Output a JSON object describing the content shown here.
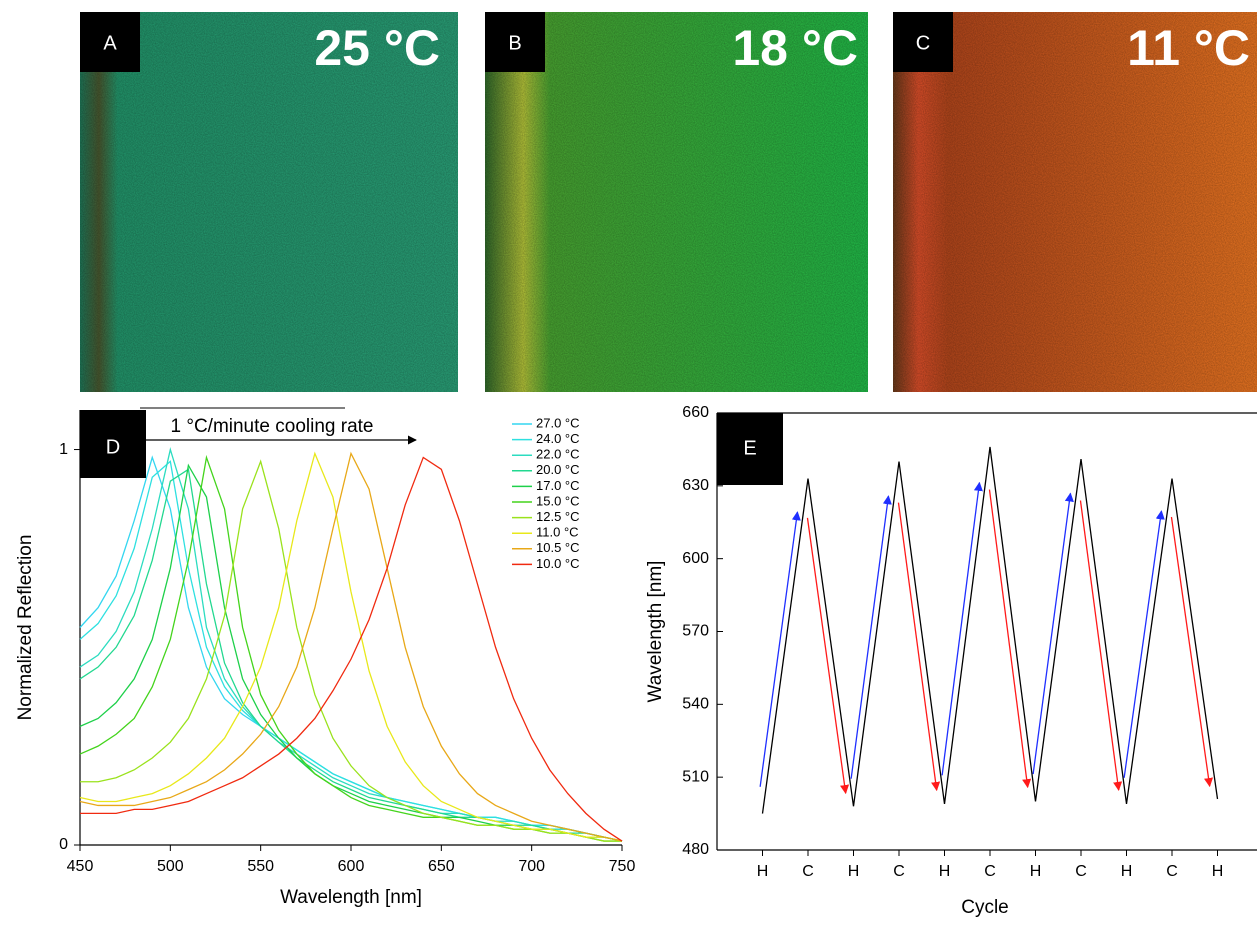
{
  "panels": [
    {
      "label": "A",
      "temperature": "25 °C"
    },
    {
      "label": "B",
      "temperature": "18 °C"
    },
    {
      "label": "C",
      "temperature": "11 °C"
    }
  ],
  "chart_data": [
    {
      "type": "line",
      "panel_label": "D",
      "xlabel": "Wavelength [nm]",
      "ylabel": "Normalized Reflection",
      "annotation": "1 °C/minute cooling rate",
      "xlim": [
        450,
        750
      ],
      "ylim": [
        0,
        1.1
      ],
      "xticks": [
        450,
        500,
        550,
        600,
        650,
        700,
        750
      ],
      "yticks": [
        0,
        1
      ],
      "legend": "upper right",
      "x": [
        450,
        460,
        470,
        480,
        490,
        500,
        510,
        520,
        530,
        540,
        550,
        560,
        570,
        580,
        590,
        600,
        610,
        620,
        630,
        640,
        650,
        660,
        670,
        680,
        690,
        700,
        710,
        720,
        730,
        740,
        750
      ],
      "series": [
        {
          "name": "27.0 °C",
          "color": "#33d6f0",
          "values": [
            0.55,
            0.6,
            0.68,
            0.82,
            0.98,
            0.85,
            0.6,
            0.45,
            0.37,
            0.33,
            0.3,
            0.27,
            0.24,
            0.21,
            0.18,
            0.16,
            0.14,
            0.12,
            0.11,
            0.1,
            0.09,
            0.08,
            0.07,
            0.07,
            0.06,
            0.05,
            0.05,
            0.04,
            0.03,
            0.02,
            0.01
          ]
        },
        {
          "name": "24.0 °C",
          "color": "#2ee0e0",
          "values": [
            0.52,
            0.56,
            0.63,
            0.75,
            0.93,
            0.97,
            0.7,
            0.5,
            0.4,
            0.34,
            0.3,
            0.27,
            0.24,
            0.21,
            0.18,
            0.16,
            0.14,
            0.12,
            0.11,
            0.1,
            0.09,
            0.08,
            0.07,
            0.07,
            0.06,
            0.05,
            0.05,
            0.04,
            0.03,
            0.02,
            0.01
          ]
        },
        {
          "name": "22.0 °C",
          "color": "#2cdcc0",
          "values": [
            0.45,
            0.48,
            0.54,
            0.64,
            0.8,
            1.0,
            0.85,
            0.55,
            0.42,
            0.35,
            0.3,
            0.26,
            0.23,
            0.2,
            0.17,
            0.15,
            0.13,
            0.12,
            0.1,
            0.09,
            0.08,
            0.08,
            0.07,
            0.06,
            0.06,
            0.05,
            0.04,
            0.04,
            0.03,
            0.02,
            0.01
          ]
        },
        {
          "name": "20.0 °C",
          "color": "#22d890",
          "values": [
            0.42,
            0.45,
            0.5,
            0.58,
            0.72,
            0.92,
            0.95,
            0.66,
            0.46,
            0.36,
            0.3,
            0.26,
            0.22,
            0.19,
            0.16,
            0.14,
            0.12,
            0.11,
            0.1,
            0.09,
            0.08,
            0.07,
            0.07,
            0.06,
            0.05,
            0.05,
            0.04,
            0.03,
            0.03,
            0.02,
            0.01
          ]
        },
        {
          "name": "17.0 °C",
          "color": "#1ed04a",
          "values": [
            0.3,
            0.32,
            0.36,
            0.42,
            0.52,
            0.7,
            0.96,
            0.88,
            0.6,
            0.42,
            0.33,
            0.27,
            0.22,
            0.18,
            0.15,
            0.13,
            0.11,
            0.1,
            0.09,
            0.08,
            0.07,
            0.07,
            0.06,
            0.05,
            0.05,
            0.04,
            0.04,
            0.03,
            0.02,
            0.02,
            0.01
          ]
        },
        {
          "name": "15.0 °C",
          "color": "#44d41c",
          "values": [
            0.23,
            0.25,
            0.28,
            0.32,
            0.4,
            0.52,
            0.72,
            0.98,
            0.85,
            0.55,
            0.38,
            0.29,
            0.23,
            0.18,
            0.15,
            0.12,
            0.1,
            0.09,
            0.08,
            0.07,
            0.07,
            0.06,
            0.05,
            0.05,
            0.04,
            0.04,
            0.03,
            0.03,
            0.02,
            0.01,
            0.01
          ]
        },
        {
          "name": "12.5 °C",
          "color": "#9ae21c",
          "values": [
            0.16,
            0.16,
            0.17,
            0.19,
            0.22,
            0.26,
            0.32,
            0.42,
            0.58,
            0.85,
            0.97,
            0.8,
            0.55,
            0.38,
            0.27,
            0.2,
            0.15,
            0.12,
            0.1,
            0.08,
            0.07,
            0.06,
            0.05,
            0.05,
            0.04,
            0.04,
            0.03,
            0.03,
            0.02,
            0.01,
            0.01
          ]
        },
        {
          "name": "11.0 °C",
          "color": "#e8e81a",
          "values": [
            0.12,
            0.11,
            0.11,
            0.12,
            0.13,
            0.15,
            0.18,
            0.22,
            0.27,
            0.35,
            0.45,
            0.6,
            0.82,
            0.99,
            0.88,
            0.64,
            0.44,
            0.3,
            0.21,
            0.15,
            0.11,
            0.09,
            0.07,
            0.06,
            0.05,
            0.04,
            0.04,
            0.03,
            0.02,
            0.02,
            0.01
          ]
        },
        {
          "name": "10.5 °C",
          "color": "#e8a818",
          "values": [
            0.11,
            0.1,
            0.1,
            0.1,
            0.11,
            0.12,
            0.14,
            0.16,
            0.19,
            0.23,
            0.28,
            0.35,
            0.45,
            0.6,
            0.8,
            0.99,
            0.9,
            0.7,
            0.5,
            0.35,
            0.25,
            0.18,
            0.13,
            0.1,
            0.08,
            0.06,
            0.05,
            0.04,
            0.03,
            0.02,
            0.01
          ]
        },
        {
          "name": "10.0 °C",
          "color": "#f02a10",
          "values": [
            0.08,
            0.08,
            0.08,
            0.09,
            0.09,
            0.1,
            0.11,
            0.13,
            0.15,
            0.17,
            0.2,
            0.23,
            0.27,
            0.32,
            0.39,
            0.47,
            0.57,
            0.7,
            0.86,
            0.98,
            0.95,
            0.82,
            0.66,
            0.5,
            0.37,
            0.27,
            0.19,
            0.13,
            0.08,
            0.04,
            0.01
          ]
        }
      ]
    },
    {
      "type": "line",
      "panel_label": "E",
      "xlabel": "Cycle",
      "ylabel": "Wavelength [nm]",
      "ylim": [
        480,
        660
      ],
      "yticks": [
        480,
        510,
        540,
        570,
        600,
        630,
        660
      ],
      "categories": [
        "H",
        "C",
        "H",
        "C",
        "H",
        "C",
        "H",
        "C",
        "H",
        "C",
        "H"
      ],
      "values": [
        495,
        633,
        498,
        640,
        499,
        646,
        500,
        641,
        499,
        633,
        501
      ],
      "color": "#000000",
      "heating_arrow_color": "#1f2fff",
      "cooling_arrow_color": "#ff1a1a"
    }
  ]
}
